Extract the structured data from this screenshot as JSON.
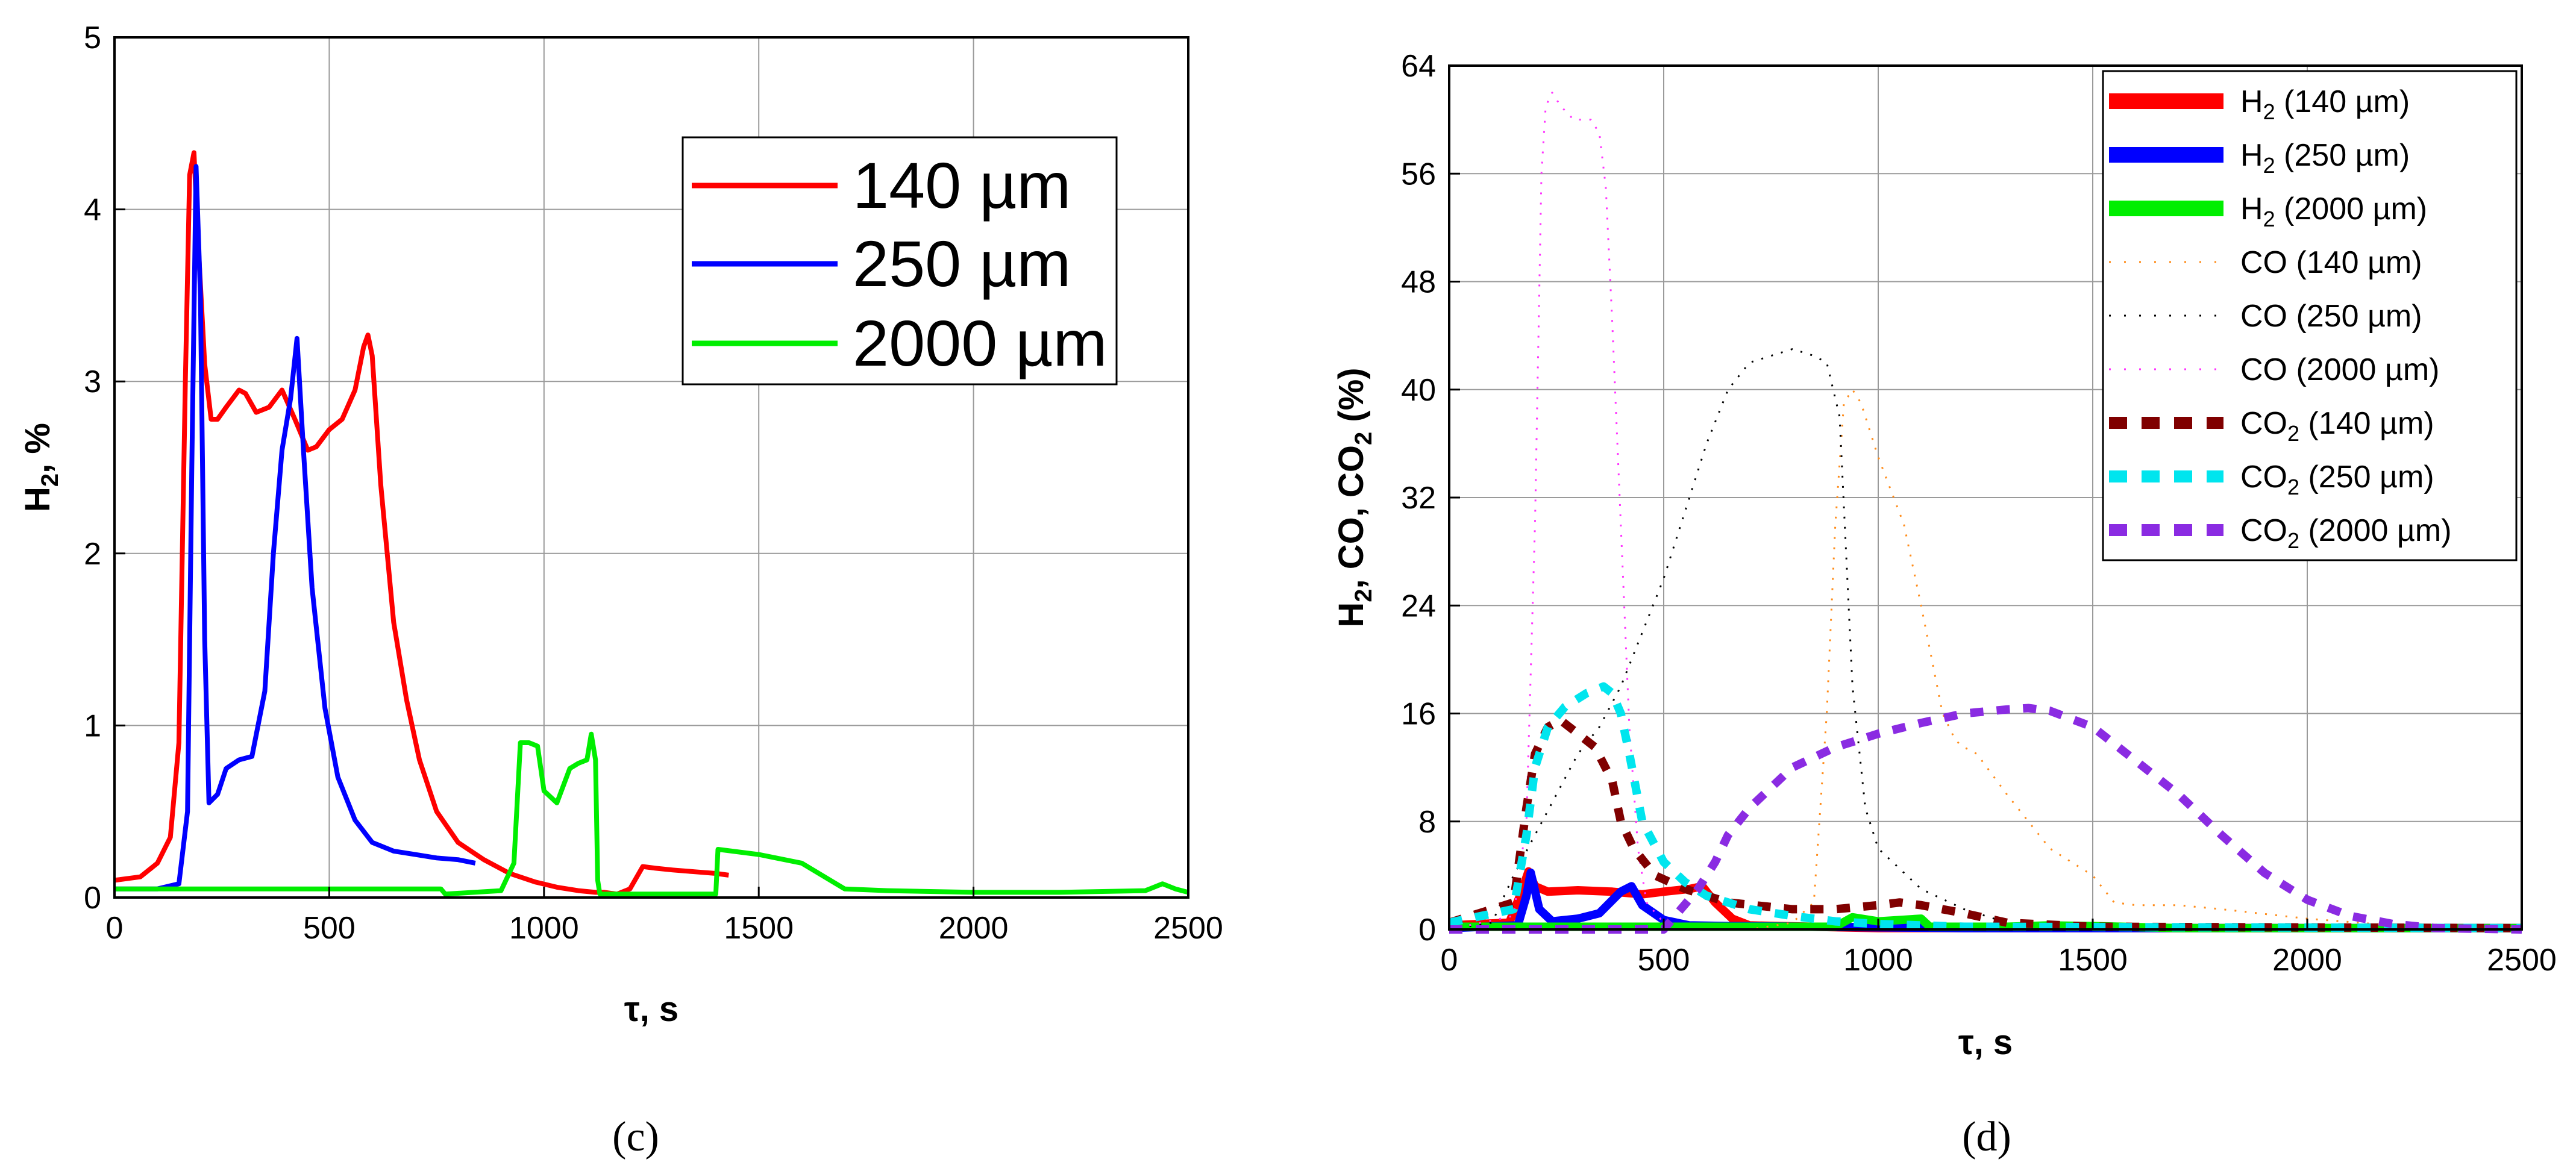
{
  "chart_data": [
    {
      "type": "line",
      "panel_label": "(c)",
      "xlabel": "τ, s",
      "ylabel_main": "H",
      "ylabel_sub": "2",
      "ylabel_tail": ", %",
      "xlim": [
        0,
        2500
      ],
      "ylim": [
        0,
        5
      ],
      "xticks": [
        0,
        500,
        1000,
        1500,
        2000,
        2500
      ],
      "yticks": [
        0,
        1,
        2,
        3,
        4,
        5
      ],
      "grid": true,
      "legend_position": "top-right",
      "series": [
        {
          "name": "140 µm",
          "color": "#ff0000",
          "x": [
            0,
            60,
            100,
            130,
            150,
            165,
            175,
            185,
            195,
            210,
            225,
            240,
            260,
            290,
            305,
            330,
            360,
            390,
            420,
            450,
            470,
            500,
            530,
            560,
            580,
            590,
            600,
            620,
            650,
            680,
            710,
            750,
            800,
            860,
            920,
            980,
            1030,
            1080,
            1120,
            1140,
            1170,
            1200,
            1230,
            1260,
            1300,
            1350,
            1400,
            1430
          ],
          "y": [
            0.1,
            0.12,
            0.2,
            0.35,
            0.9,
            3.0,
            4.2,
            4.33,
            3.8,
            3.1,
            2.78,
            2.78,
            2.85,
            2.95,
            2.93,
            2.82,
            2.85,
            2.95,
            2.78,
            2.6,
            2.62,
            2.72,
            2.78,
            2.95,
            3.2,
            3.27,
            3.15,
            2.4,
            1.6,
            1.15,
            0.8,
            0.5,
            0.32,
            0.22,
            0.14,
            0.09,
            0.06,
            0.04,
            0.03,
            0.03,
            0.02,
            0.05,
            0.18,
            0.17,
            0.16,
            0.15,
            0.14,
            0.13
          ]
        },
        {
          "name": "250 µm",
          "color": "#0000ff",
          "x": [
            0,
            100,
            150,
            170,
            180,
            190,
            200,
            210,
            220,
            240,
            260,
            290,
            320,
            350,
            370,
            390,
            410,
            425,
            440,
            460,
            490,
            520,
            560,
            600,
            650,
            700,
            750,
            800,
            840
          ],
          "y": [
            0.05,
            0.05,
            0.08,
            0.5,
            2.5,
            4.25,
            3.5,
            1.5,
            0.55,
            0.6,
            0.75,
            0.8,
            0.82,
            1.2,
            2.0,
            2.6,
            2.9,
            3.25,
            2.6,
            1.8,
            1.1,
            0.7,
            0.45,
            0.32,
            0.27,
            0.25,
            0.23,
            0.22,
            0.2
          ]
        },
        {
          "name": "2000 µm",
          "color": "#00ee00",
          "x": [
            0,
            760,
            770,
            900,
            930,
            945,
            965,
            985,
            1000,
            1030,
            1060,
            1080,
            1100,
            1110,
            1120,
            1125,
            1130,
            1300,
            1400,
            1405,
            1500,
            1600,
            1700,
            1800,
            2000,
            2200,
            2400,
            2440,
            2470,
            2500
          ],
          "y": [
            0.05,
            0.05,
            0.02,
            0.04,
            0.2,
            0.9,
            0.9,
            0.88,
            0.62,
            0.55,
            0.75,
            0.78,
            0.8,
            0.95,
            0.8,
            0.1,
            0.02,
            0.02,
            0.02,
            0.28,
            0.25,
            0.2,
            0.05,
            0.04,
            0.03,
            0.03,
            0.04,
            0.08,
            0.05,
            0.03
          ]
        }
      ]
    },
    {
      "type": "line",
      "panel_label": "(d)",
      "xlabel": "τ, s",
      "ylabel_parts": [
        "H",
        "2",
        ", CO, CO",
        "2",
        " (%)"
      ],
      "xlim": [
        0,
        2500
      ],
      "ylim": [
        0,
        64
      ],
      "xticks": [
        0,
        500,
        1000,
        1500,
        2000,
        2500
      ],
      "yticks": [
        0,
        8,
        16,
        24,
        32,
        40,
        48,
        56,
        64
      ],
      "grid": true,
      "legend_position": "top-right",
      "series": [
        {
          "name_main": "H",
          "name_sub": "2",
          "name_tail": " (140 µm)",
          "color": "#ff0000",
          "style": "thick",
          "x": [
            0,
            140,
            165,
            185,
            200,
            230,
            300,
            380,
            450,
            500,
            560,
            590,
            620,
            660,
            700,
            1000,
            2500
          ],
          "y": [
            0.3,
            0.5,
            2.5,
            4.3,
            3.2,
            2.8,
            2.9,
            2.8,
            2.6,
            2.8,
            3.0,
            3.2,
            2.0,
            0.8,
            0.3,
            0.1,
            0.1
          ]
        },
        {
          "name_main": "H",
          "name_sub": "2",
          "name_tail": " (250 µm)",
          "color": "#0000ff",
          "style": "thick",
          "x": [
            0,
            160,
            180,
            190,
            210,
            240,
            300,
            350,
            400,
            425,
            450,
            500,
            560,
            650,
            840,
            1200,
            2500
          ],
          "y": [
            0.1,
            0.3,
            2.5,
            4.2,
            1.5,
            0.6,
            0.8,
            1.2,
            2.8,
            3.2,
            1.8,
            0.7,
            0.3,
            0.25,
            0.2,
            0.1,
            0.1
          ]
        },
        {
          "name_main": "H",
          "name_sub": "2",
          "name_tail": " (2000 µm)",
          "color": "#00ee00",
          "style": "thick",
          "x": [
            0,
            900,
            940,
            1000,
            1100,
            1120,
            1300,
            1400,
            1500,
            1700,
            2500
          ],
          "y": [
            0.2,
            0.2,
            0.9,
            0.6,
            0.8,
            0.2,
            0.2,
            0.3,
            0.25,
            0.1,
            0.1
          ]
        },
        {
          "name_main": "CO (140 µm)",
          "name_sub": "",
          "name_tail": "",
          "color": "#ff8c1a",
          "style": "dotted",
          "x": [
            0,
            700,
            800,
            850,
            880,
            900,
            920,
            940,
            960,
            1000,
            1060,
            1100,
            1150,
            1180,
            1200,
            1230,
            1300,
            1400,
            1500,
            1550,
            1600,
            1700,
            1800,
            2000,
            2200,
            2500
          ],
          "y": [
            0,
            0,
            0.5,
            2,
            16,
            30,
            39,
            40,
            39,
            35,
            30,
            24,
            16,
            14,
            13.5,
            13,
            10,
            6,
            4,
            2,
            1.8,
            1.8,
            1.5,
            0.8,
            0.3,
            0.1
          ]
        },
        {
          "name_main": "CO (250 µm)",
          "name_sub": "",
          "name_tail": "",
          "color": "#000000",
          "style": "dotted",
          "x": [
            0,
            100,
            150,
            200,
            250,
            300,
            350,
            400,
            450,
            500,
            550,
            600,
            650,
            700,
            750,
            800,
            850,
            880,
            910,
            940,
            970,
            1000,
            1100,
            1200,
            1300
          ],
          "y": [
            0,
            0.5,
            4,
            7,
            10,
            13,
            15,
            18,
            22,
            26,
            31,
            36,
            40,
            42,
            42.5,
            43,
            42.5,
            42,
            38,
            18,
            9,
            6,
            3,
            1.5,
            0.5
          ]
        },
        {
          "name_main": "CO (2000 µm)",
          "name_sub": "",
          "name_tail": "",
          "color": "#ff33ff",
          "style": "dotted",
          "x": [
            0,
            150,
            180,
            200,
            215,
            225,
            240,
            260,
            290,
            330,
            350,
            365,
            380,
            400,
            420,
            440,
            460,
            500
          ],
          "y": [
            0,
            1,
            8,
            30,
            56,
            61,
            62,
            61,
            60,
            60,
            59,
            55,
            45,
            30,
            15,
            6,
            2,
            0.5
          ]
        },
        {
          "name_main": "CO",
          "name_sub": "2",
          "name_tail": " (140 µm)",
          "color": "#800000",
          "style": "dashed",
          "x": [
            0,
            150,
            180,
            200,
            230,
            260,
            300,
            340,
            380,
            400,
            430,
            480,
            550,
            650,
            800,
            900,
            1000,
            1050,
            1100,
            1200,
            1300,
            1500,
            2500
          ],
          "y": [
            0.5,
            2,
            9,
            13,
            15,
            15.5,
            14.5,
            13.5,
            11,
            8,
            6,
            4,
            3,
            2,
            1.5,
            1.5,
            1.8,
            2,
            1.8,
            1.2,
            0.5,
            0.2,
            0.1
          ]
        },
        {
          "name_main": "CO",
          "name_sub": "2",
          "name_tail": " (250 µm)",
          "color": "#00e5ee",
          "style": "dashed",
          "x": [
            0,
            150,
            180,
            200,
            230,
            270,
            320,
            360,
            380,
            400,
            420,
            450,
            500,
            550,
            600,
            700,
            800,
            900,
            1000,
            1200,
            2500
          ],
          "y": [
            0.5,
            1.5,
            7,
            12,
            15,
            16.5,
            17.5,
            18,
            17.5,
            16,
            13,
            8,
            5,
            3.5,
            2.5,
            1.5,
            1,
            0.6,
            0.4,
            0.2,
            0.1
          ]
        },
        {
          "name_main": "CO",
          "name_sub": "2",
          "name_tail": " (2000 µm)",
          "color": "#8a2be2",
          "style": "dashed",
          "x": [
            0,
            500,
            540,
            580,
            620,
            650,
            700,
            800,
            900,
            1000,
            1100,
            1200,
            1300,
            1350,
            1400,
            1500,
            1600,
            1700,
            1800,
            1900,
            2000,
            2100,
            2200,
            2300,
            2500
          ],
          "y": [
            0,
            0,
            1.5,
            3,
            5,
            7,
            9,
            12,
            13.5,
            14.5,
            15.3,
            16,
            16.3,
            16.4,
            16.2,
            15,
            12.5,
            10,
            7,
            4.2,
            2.2,
            1,
            0.4,
            0.1,
            0
          ]
        }
      ]
    }
  ]
}
